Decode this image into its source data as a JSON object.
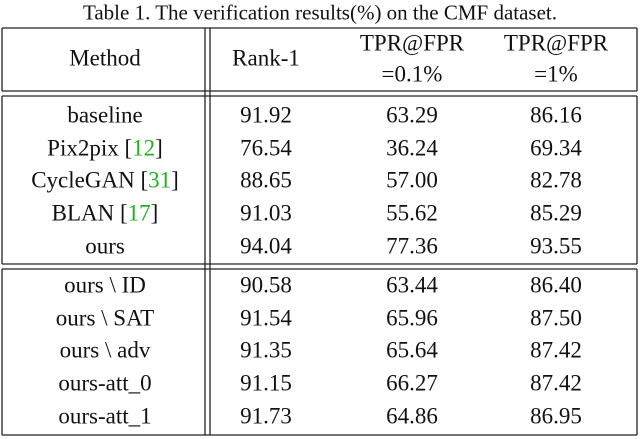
{
  "caption": "Table 1. The verification results(%) on the CMF dataset.",
  "table": {
    "header": [
      [
        "Method"
      ],
      [
        "Rank-1"
      ],
      [
        "TPR@FPR",
        "=0.1%"
      ],
      [
        "TPR@FPR",
        "=1%"
      ]
    ],
    "groups": [
      [
        [
          "baseline",
          "91.92",
          "63.29",
          "86.16"
        ],
        [
          "Pix2pix [12]",
          "76.54",
          "36.24",
          "69.34"
        ],
        [
          "CycleGAN [31]",
          "88.65",
          "57.00",
          "82.78"
        ],
        [
          "BLAN [17]",
          "91.03",
          "55.62",
          "85.29"
        ],
        [
          "ours",
          "94.04",
          "77.36",
          "93.55"
        ]
      ],
      [
        [
          "ours \\ ID",
          "90.58",
          "63.44",
          "86.40"
        ],
        [
          "ours \\ SAT",
          "91.54",
          "65.96",
          "87.50"
        ],
        [
          "ours \\ adv",
          "91.35",
          "65.64",
          "87.42"
        ],
        [
          "ours-att_0",
          "91.15",
          "66.27",
          "87.42"
        ],
        [
          "ours-att_1",
          "91.73",
          "64.86",
          "86.95"
        ]
      ]
    ]
  }
}
